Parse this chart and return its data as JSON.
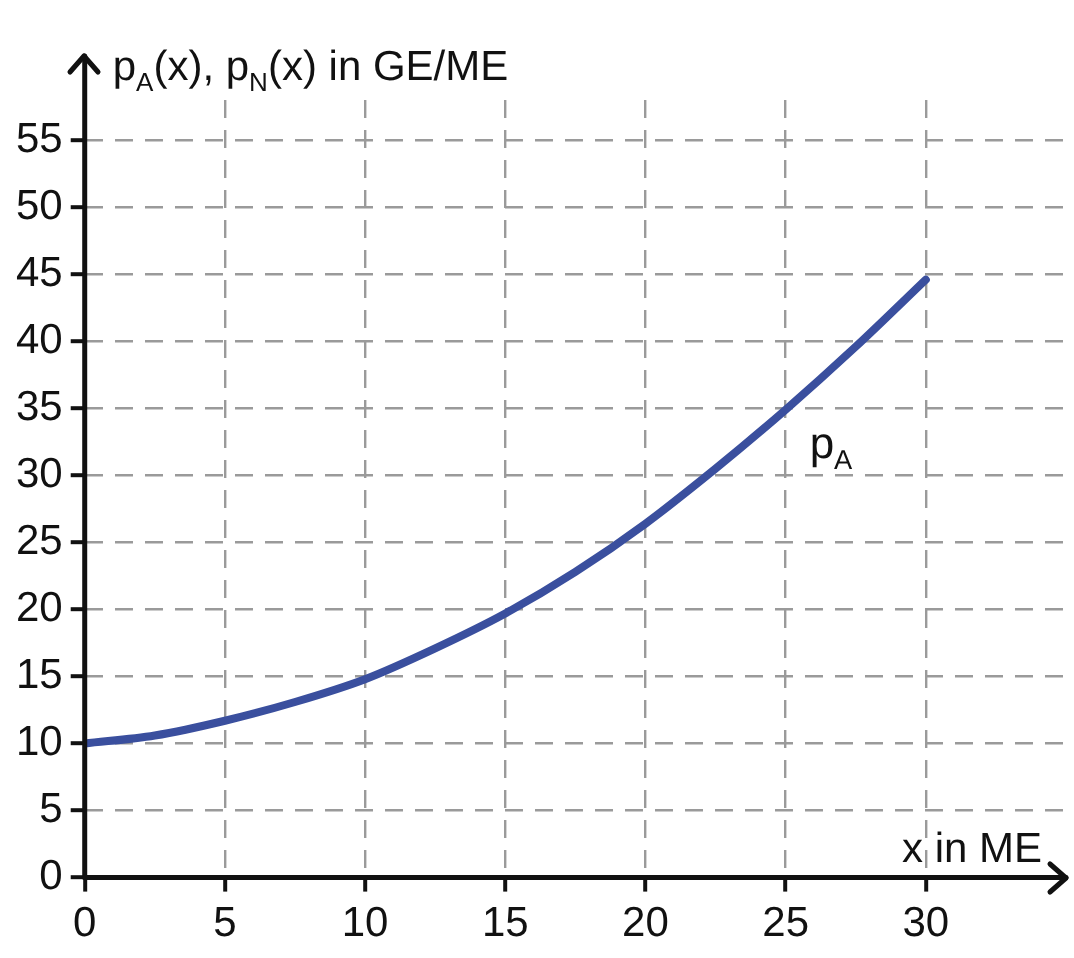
{
  "chart_data": {
    "type": "line",
    "xlabel": "x in ME",
    "ylabel": "p$_{A}$(x), p$_{N}$(x) in GE/ME",
    "x": [
      0,
      2.5,
      5,
      7.5,
      10,
      12.5,
      15,
      17.5,
      20,
      22.5,
      25,
      27.5,
      30
    ],
    "series": [
      {
        "name": "p$_{A}$",
        "color": "#3a4f9e",
        "values": [
          10,
          10.6,
          11.7,
          13.1,
          14.8,
          17.1,
          19.7,
          22.8,
          26.4,
          30.5,
          34.9,
          39.6,
          44.6
        ]
      }
    ],
    "xlim": [
      0,
      35
    ],
    "xticks": [
      0,
      5,
      10,
      15,
      20,
      25,
      30
    ],
    "ylim": [
      0,
      58
    ],
    "yticks": [
      0,
      5,
      10,
      15,
      20,
      25,
      30,
      35,
      40,
      45,
      50,
      55
    ],
    "grid": true,
    "legend": false,
    "marker": "none",
    "line_style": "solid"
  }
}
